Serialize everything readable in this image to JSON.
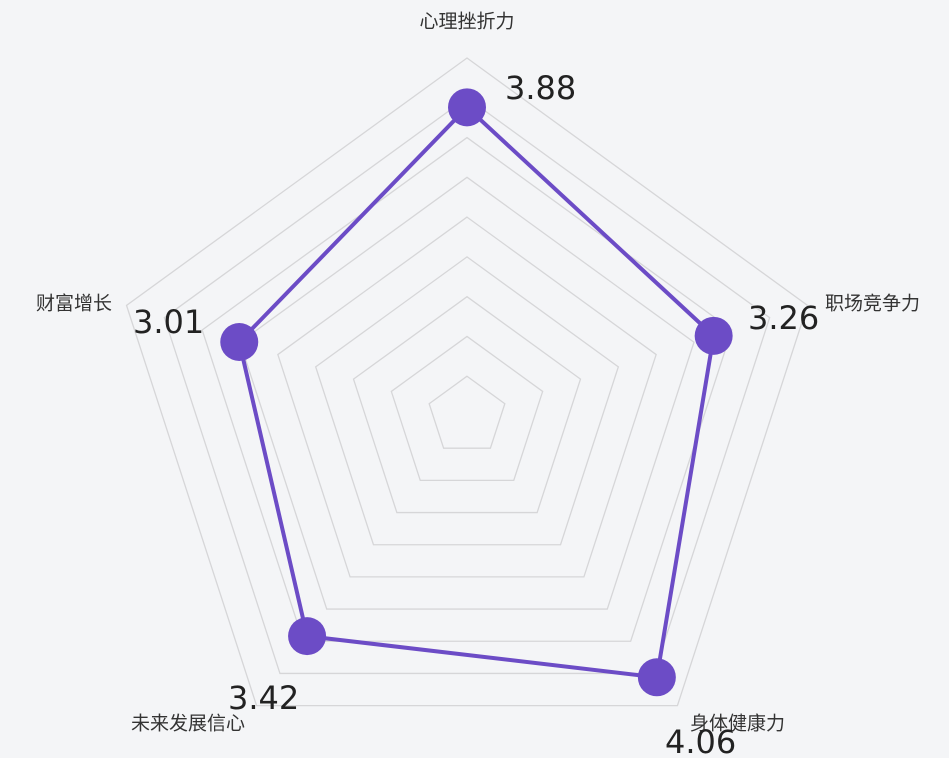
{
  "chart_data": {
    "type": "radar",
    "categories": [
      "心理挫折力",
      "职场竞争力",
      "身体健康力",
      "未来发展信心",
      "财富增长"
    ],
    "values": [
      3.88,
      3.26,
      4.06,
      3.42,
      3.01
    ],
    "color": "#6c4cc6",
    "rlim": [
      0,
      4.5
    ],
    "rticks": [
      0.5,
      1,
      1.5,
      2,
      2.5,
      3,
      3.5,
      4,
      4.5
    ],
    "grid": true
  }
}
